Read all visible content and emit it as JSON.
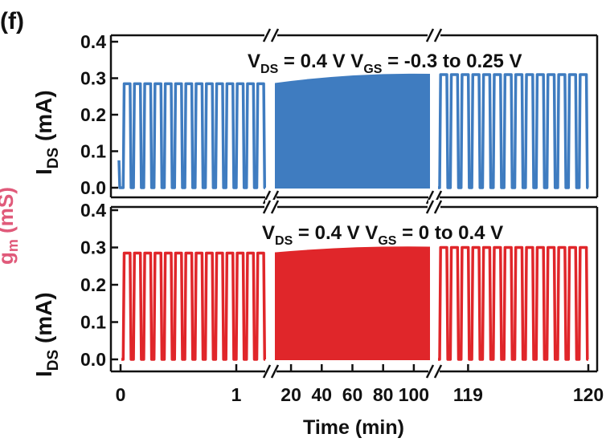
{
  "panel_label": "(f)",
  "cutoff_label": {
    "text": "g",
    "sub": "m",
    "unit": " (mS)"
  },
  "chart_data": {
    "type": "line",
    "xlabel": "Time (min)",
    "ylabel": {
      "main": "I",
      "sub": "DS",
      "unit": " (mA)"
    },
    "ylim": [
      0.0,
      0.4
    ],
    "y_ticks": [
      "0.0",
      "0.1",
      "0.2",
      "0.3",
      "0.4"
    ],
    "x_segments": [
      {
        "range": [
          0,
          1.25
        ],
        "ticks": [
          "0",
          "1"
        ]
      },
      {
        "range": [
          10,
          110
        ],
        "ticks": [
          "20",
          "40",
          "60",
          "80",
          "100"
        ]
      },
      {
        "range": [
          118.75,
          120
        ],
        "ticks": [
          "119",
          "120"
        ]
      }
    ],
    "panels": [
      {
        "name": "top",
        "color": "#3f7cc0",
        "annotation": {
          "v1": "V",
          "s1": "DS",
          "m1": " = 0.4 V V",
          "s2": "GS",
          "m2": " = -0.3 to 0.25 V"
        },
        "low": 0.0,
        "high_start": 0.285,
        "high_end": 0.31,
        "initial_spike": 0.075
      },
      {
        "name": "bottom",
        "color": "#e0262a",
        "annotation": {
          "v1": "V",
          "s1": "DS",
          "m1": " = 0.4 V V",
          "s2": "GS",
          "m2": " = 0 to 0.4 V"
        },
        "low": 0.0,
        "high_start": 0.285,
        "high_end": 0.3,
        "initial_spike": null
      }
    ]
  }
}
